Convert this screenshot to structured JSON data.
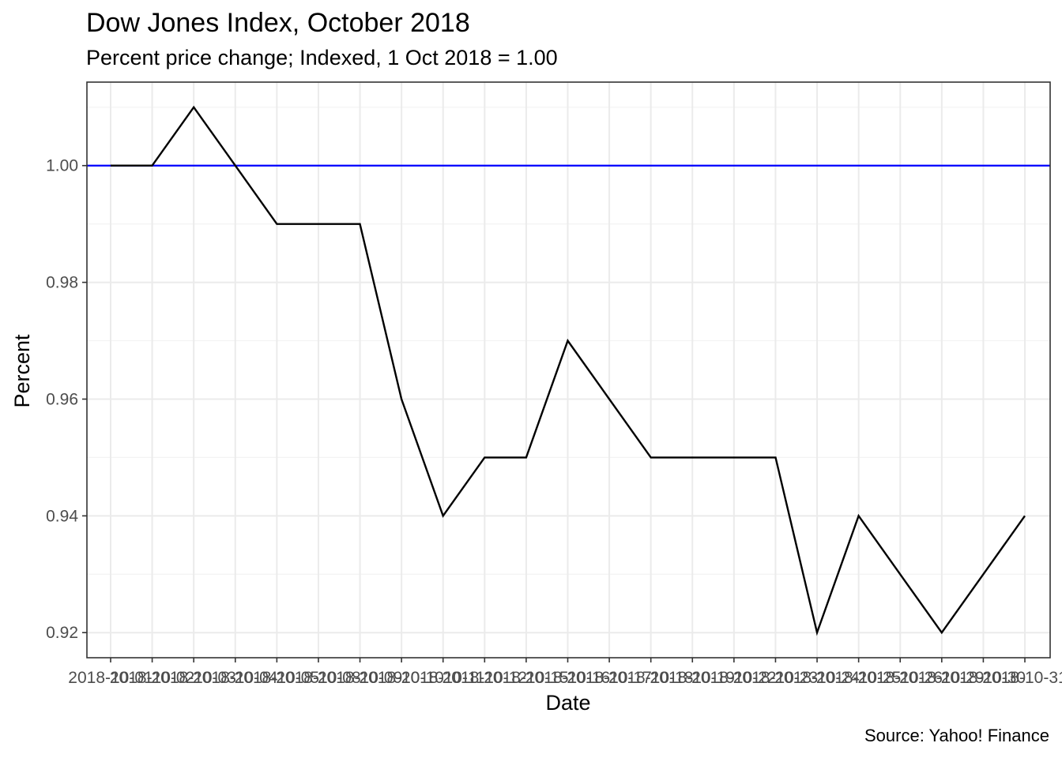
{
  "chart_data": {
    "type": "line",
    "title": "Dow Jones Index, October 2018",
    "subtitle": "Percent price change; Indexed, 1 Oct 2018 = 1.00",
    "xlabel": "Date",
    "ylabel": "Percent",
    "caption": "Source: Yahoo! Finance",
    "x": [
      "2018-10-01",
      "2018-10-02",
      "2018-10-03",
      "2018-10-04",
      "2018-10-05",
      "2018-10-08",
      "2018-10-09",
      "2018-10-10",
      "2018-10-11",
      "2018-10-12",
      "2018-10-15",
      "2018-10-16",
      "2018-10-17",
      "2018-10-18",
      "2018-10-19",
      "2018-10-22",
      "2018-10-23",
      "2018-10-24",
      "2018-10-25",
      "2018-10-26",
      "2018-10-29",
      "2018-10-30",
      "2018-10-31"
    ],
    "series": [
      {
        "values": [
          1.0,
          1.0,
          1.01,
          1.0,
          0.99,
          0.99,
          0.99,
          0.96,
          0.94,
          0.95,
          0.95,
          0.97,
          0.96,
          0.95,
          0.95,
          0.95,
          0.95,
          0.92,
          0.94,
          0.93,
          0.92,
          0.93,
          0.94
        ],
        "color": "#000000"
      }
    ],
    "reference_line": {
      "y": 1.0,
      "color": "#0000ff"
    },
    "yticks": [
      0.92,
      0.94,
      0.96,
      0.98,
      1.0
    ],
    "ytick_labels": [
      "0.92",
      "0.94",
      "0.96",
      "0.98",
      "1.00"
    ],
    "ylim": [
      0.9157,
      1.0143
    ],
    "grid": true,
    "theme": "bw"
  }
}
